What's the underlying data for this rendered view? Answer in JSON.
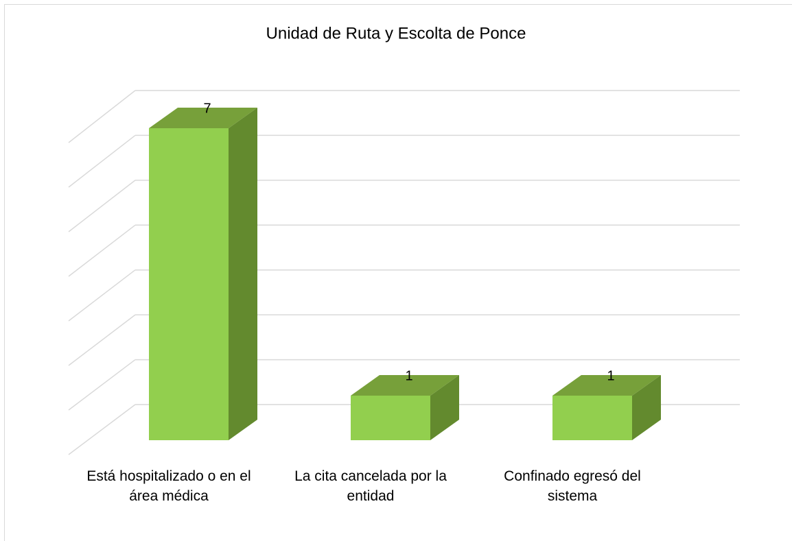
{
  "chart_data": {
    "type": "bar3d",
    "title": "Unidad de Ruta y Escolta de Ponce",
    "categories": [
      "Está hospitalizado o en el área médica",
      "La cita cancelada por la entidad",
      "Confinado egresó del sistema"
    ],
    "values": [
      7,
      1,
      1
    ],
    "color": "#92cf4e",
    "top_color": "#77a03a",
    "side_color": "#638a2e",
    "ylim": [
      0,
      7
    ],
    "yticks": [
      0,
      1,
      2,
      3,
      4,
      5,
      6,
      7
    ],
    "grid": true
  }
}
